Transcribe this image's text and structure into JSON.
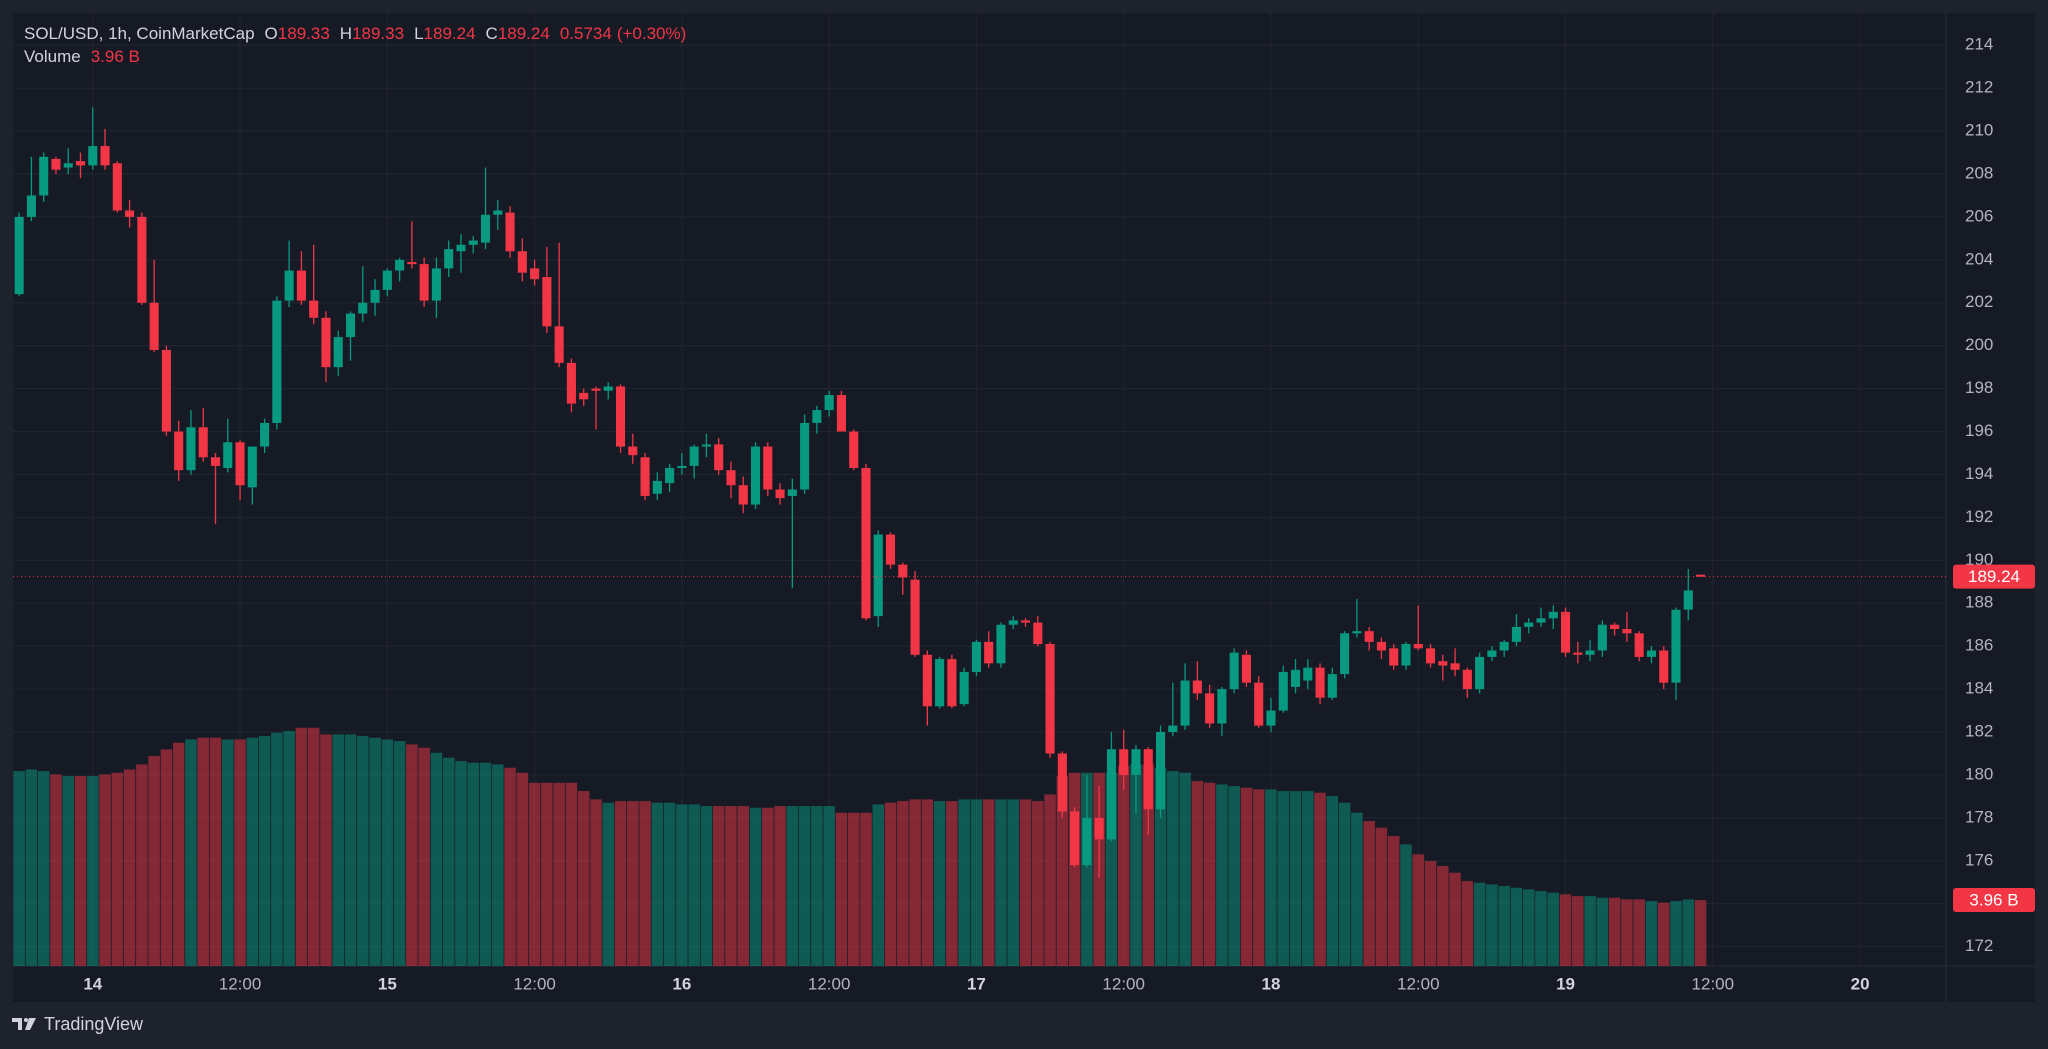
{
  "chart_data": {
    "type": "candlestick",
    "title": "SOL/USD, 1h, CoinMarketCap",
    "ohlc_labels": [
      "O",
      "H",
      "L",
      "C"
    ],
    "change": 0.5734,
    "change_percent_label": "(+0.30%)",
    "volume_title": "Volume",
    "last_volume_label": "3.96 B",
    "footer": "TradingView",
    "up_color": "#089981",
    "down_color": "#f23645",
    "grid": true,
    "xlim": [
      -6.5,
      151
    ],
    "xticks": [
      {
        "value": 0,
        "label": "14"
      },
      {
        "value": 12,
        "label": "12:00"
      },
      {
        "value": 24,
        "label": "15"
      },
      {
        "value": 36,
        "label": "12:00"
      },
      {
        "value": 48,
        "label": "16"
      },
      {
        "value": 60,
        "label": "12:00"
      },
      {
        "value": 72,
        "label": "17"
      },
      {
        "value": 84,
        "label": "12:00"
      },
      {
        "value": 96,
        "label": "18"
      },
      {
        "value": 108,
        "label": "12:00"
      },
      {
        "value": 120,
        "label": "19"
      },
      {
        "value": 132,
        "label": "12:00"
      },
      {
        "value": 144,
        "label": "20"
      }
    ],
    "ylim": [
      171.1,
      215.5
    ],
    "yticks": [
      172,
      174,
      176,
      178,
      180,
      182,
      184,
      186,
      188,
      190,
      192,
      194,
      196,
      198,
      200,
      202,
      204,
      206,
      208,
      210,
      212,
      214
    ],
    "x": [
      -6,
      -5,
      -4,
      -3,
      -2,
      -1,
      0,
      1,
      2,
      3,
      4,
      5,
      6,
      7,
      8,
      9,
      10,
      11,
      12,
      13,
      14,
      15,
      16,
      17,
      18,
      19,
      20,
      21,
      22,
      23,
      24,
      25,
      26,
      27,
      28,
      29,
      30,
      31,
      32,
      33,
      34,
      35,
      36,
      37,
      38,
      39,
      40,
      41,
      42,
      43,
      44,
      45,
      46,
      47,
      48,
      49,
      50,
      51,
      52,
      53,
      54,
      55,
      56,
      57,
      58,
      59,
      60,
      61,
      62,
      63,
      64,
      65,
      66,
      67,
      68,
      69,
      70,
      71,
      72,
      73,
      74,
      75,
      76,
      77,
      78,
      79,
      80,
      81,
      82,
      83,
      84,
      85,
      86,
      87,
      88,
      89,
      90,
      91,
      92,
      93,
      94,
      95,
      96,
      97,
      98,
      99,
      100,
      101,
      102,
      103,
      104,
      105,
      106,
      107,
      108,
      109,
      110,
      111,
      112,
      113,
      114,
      115,
      116,
      117,
      118,
      119,
      120,
      121,
      122,
      123,
      124,
      125,
      126,
      127,
      128,
      129,
      130,
      131
    ],
    "open": [
      202.4,
      206,
      207,
      208.7,
      208.3,
      208.6,
      208.4,
      209.3,
      208.5,
      206.3,
      206,
      202,
      199.8,
      196,
      194.2,
      196.2,
      194.8,
      194.3,
      195.5,
      193.4,
      195.3,
      196.4,
      202.1,
      203.5,
      202.1,
      201.3,
      199,
      200.4,
      201.5,
      202,
      202.6,
      203.5,
      203.9,
      203.8,
      202.1,
      203.6,
      204.4,
      204.7,
      204.8,
      206.1,
      206.2,
      204.4,
      203.6,
      203.2,
      200.9,
      199.2,
      197.8,
      198,
      197.9,
      198.1,
      195.3,
      194.8,
      193.1,
      193.6,
      194.3,
      194.4,
      195.3,
      195.4,
      194.2,
      193.5,
      192.6,
      195.3,
      193.3,
      193,
      193.3,
      196.4,
      197,
      197.7,
      196,
      194.3,
      187.4,
      191.2,
      189.8,
      189.1,
      185.6,
      183.2,
      185.4,
      183.3,
      184.8,
      186.2,
      185.2,
      187,
      187.2,
      187.1,
      186.1,
      181,
      178.3,
      175.8,
      178,
      177,
      181.2,
      180,
      181.2,
      178.4,
      182,
      182.3,
      184.4,
      183.8,
      182.4,
      184,
      185.6,
      184.3,
      182.3,
      183,
      184.1,
      184.4,
      185,
      183.6,
      184.7,
      186.6,
      186.7,
      186.2,
      185.9,
      185.1,
      186.1,
      185.9,
      185.3,
      185.2,
      184.9,
      184,
      185.5,
      185.8,
      186.2,
      186.9,
      187.1,
      187.3,
      187.6,
      185.7,
      185.6,
      185.8,
      187,
      186.8,
      186.6,
      185.5,
      185.8,
      184.3,
      187.7,
      189.33
    ],
    "high": [
      206.2,
      208.8,
      209,
      208.8,
      209.2,
      209,
      211.1,
      210.1,
      208.6,
      206.8,
      206.2,
      204,
      200,
      196.5,
      197,
      197.1,
      195,
      196.6,
      195.6,
      195.3,
      196.6,
      202.3,
      204.9,
      204.4,
      204.7,
      201.6,
      200.7,
      201.6,
      203.7,
      203.1,
      203.6,
      204.1,
      205.8,
      204.1,
      204.1,
      204.9,
      205.2,
      205.1,
      208.3,
      206.8,
      206.5,
      205,
      204,
      204.6,
      204.8,
      199.4,
      198,
      198.1,
      198.3,
      198.2,
      195.9,
      195,
      194.1,
      194.5,
      195,
      195.4,
      195.9,
      195.7,
      194.6,
      193.9,
      195.5,
      195.5,
      193.6,
      193.8,
      196.8,
      197.2,
      197.9,
      197.9,
      196.1,
      194.5,
      191.4,
      191.3,
      189.9,
      189.5,
      185.8,
      185.5,
      185.6,
      185,
      186.3,
      186.7,
      187.1,
      187.4,
      187.3,
      187.4,
      186.2,
      181.1,
      178.5,
      180,
      179.5,
      182,
      182.1,
      181.4,
      181.3,
      182.3,
      184.3,
      185.2,
      185.3,
      184.2,
      184.1,
      185.9,
      185.8,
      184.6,
      183.6,
      185.1,
      185.4,
      185.4,
      185.2,
      185,
      186.7,
      188.2,
      186.9,
      186.4,
      186.1,
      186.2,
      187.9,
      186.1,
      185.6,
      185.9,
      185,
      185.7,
      186,
      186.3,
      187.5,
      187.3,
      187.8,
      187.9,
      187.8,
      186.2,
      186.3,
      187.2,
      187.1,
      187.6,
      186.7,
      186,
      186,
      187.8,
      189.6,
      189.33
    ],
    "low": [
      202.3,
      205.8,
      206.7,
      208,
      208,
      207.8,
      208.2,
      208.2,
      206.2,
      205.5,
      201.9,
      199.7,
      195.8,
      193.7,
      194,
      194.6,
      191.7,
      194.1,
      192.8,
      192.6,
      195,
      196.1,
      201.8,
      201.9,
      201,
      198.3,
      198.6,
      199.3,
      201.1,
      201.4,
      202.3,
      203,
      203.6,
      201.8,
      201.3,
      203.2,
      203.4,
      204.3,
      204.5,
      205.4,
      204.1,
      203,
      202.8,
      200.6,
      199,
      196.9,
      197.2,
      196.1,
      197.5,
      195,
      194.5,
      192.8,
      192.8,
      193.2,
      194,
      193.8,
      194.8,
      194,
      192.9,
      192.2,
      192.4,
      193,
      192.6,
      188.7,
      193.1,
      195.9,
      196.7,
      196,
      194.2,
      187.2,
      186.9,
      189.6,
      188.4,
      185.5,
      182.3,
      183.1,
      183.1,
      183.2,
      184.6,
      185,
      185,
      186.8,
      186.9,
      186,
      180.8,
      178,
      175.7,
      175.7,
      175.2,
      176.9,
      179.3,
      178.2,
      177.2,
      178,
      181.8,
      182.1,
      183.5,
      182.2,
      181.8,
      183.8,
      184.1,
      182.2,
      182,
      182.9,
      183.8,
      184,
      183.3,
      183.5,
      184.5,
      186.4,
      185.8,
      185.4,
      184.9,
      184.9,
      185.8,
      185,
      184.4,
      184.6,
      183.6,
      183.8,
      185.3,
      185.5,
      186,
      186.6,
      186.9,
      186.8,
      185.5,
      185.2,
      185.3,
      185.5,
      186.5,
      186.2,
      185.3,
      185.2,
      184,
      183.5,
      187.2,
      189.24
    ],
    "close": [
      206,
      207,
      208.8,
      208.2,
      208.5,
      208.4,
      209.3,
      208.4,
      206.3,
      206,
      202,
      199.8,
      196,
      194.2,
      196.2,
      194.8,
      194.4,
      195.5,
      193.5,
      195.3,
      196.4,
      202.1,
      203.5,
      202.1,
      201.3,
      199,
      200.4,
      201.5,
      202,
      202.6,
      203.5,
      204,
      203.8,
      202.1,
      203.6,
      204.5,
      204.7,
      204.9,
      206.1,
      206.3,
      204.4,
      203.4,
      203.1,
      200.9,
      199.2,
      197.3,
      197.5,
      197.9,
      198.1,
      195.3,
      194.9,
      193,
      193.7,
      194.3,
      194.4,
      195.3,
      195.4,
      194.2,
      193.5,
      192.6,
      195.3,
      193.3,
      192.9,
      193.3,
      196.4,
      197,
      197.7,
      196,
      194.3,
      187.3,
      191.2,
      189.8,
      189.2,
      185.6,
      183.2,
      185.4,
      183.2,
      184.8,
      186.2,
      185.2,
      187,
      187.2,
      187.1,
      186.1,
      181,
      178.3,
      175.8,
      178,
      177,
      181.2,
      180,
      181.2,
      178.4,
      182,
      182.3,
      184.4,
      183.8,
      182.4,
      184,
      185.7,
      184.3,
      182.3,
      183,
      184.8,
      184.9,
      185,
      183.6,
      184.7,
      186.6,
      186.7,
      186.2,
      185.8,
      185.1,
      186.1,
      185.9,
      185.2,
      185.1,
      184.9,
      184,
      185.5,
      185.8,
      186.2,
      186.9,
      187.1,
      187.3,
      187.6,
      185.7,
      185.6,
      185.8,
      187,
      186.8,
      186.6,
      185.5,
      185.8,
      184.3,
      187.7,
      188.6,
      189.24
    ],
    "volume": [
      11.7,
      11.8,
      11.7,
      11.5,
      11.4,
      11.4,
      11.4,
      11.5,
      11.6,
      11.8,
      12.1,
      12.6,
      13.0,
      13.4,
      13.6,
      13.7,
      13.7,
      13.6,
      13.6,
      13.7,
      13.8,
      14.0,
      14.1,
      14.3,
      14.3,
      13.9,
      13.9,
      13.9,
      13.8,
      13.7,
      13.6,
      13.5,
      13.3,
      13.1,
      12.8,
      12.5,
      12.3,
      12.2,
      12.2,
      12.1,
      11.9,
      11.6,
      11.0,
      11.0,
      11.0,
      11.0,
      10.5,
      10.0,
      9.8,
      9.9,
      9.9,
      9.9,
      9.8,
      9.8,
      9.7,
      9.7,
      9.6,
      9.6,
      9.6,
      9.6,
      9.5,
      9.5,
      9.6,
      9.6,
      9.6,
      9.6,
      9.6,
      9.2,
      9.2,
      9.2,
      9.7,
      9.8,
      9.9,
      10.0,
      10.0,
      9.9,
      9.9,
      10.0,
      10.0,
      10.0,
      10.0,
      10.0,
      10.0,
      9.9,
      10.3,
      11.4,
      11.6,
      11.6,
      11.6,
      11.6,
      12.0,
      12.1,
      12.1,
      11.9,
      11.7,
      11.6,
      11.1,
      11.0,
      10.9,
      10.8,
      10.7,
      10.6,
      10.6,
      10.5,
      10.5,
      10.5,
      10.4,
      10.2,
      9.8,
      9.2,
      8.7,
      8.3,
      7.8,
      7.3,
      6.7,
      6.3,
      6.0,
      5.6,
      5.1,
      5.0,
      4.9,
      4.8,
      4.7,
      4.6,
      4.5,
      4.4,
      4.3,
      4.2,
      4.2,
      4.1,
      4.1,
      4.0,
      4.0,
      3.9,
      3.8,
      3.9,
      4.0,
      3.96
    ]
  }
}
